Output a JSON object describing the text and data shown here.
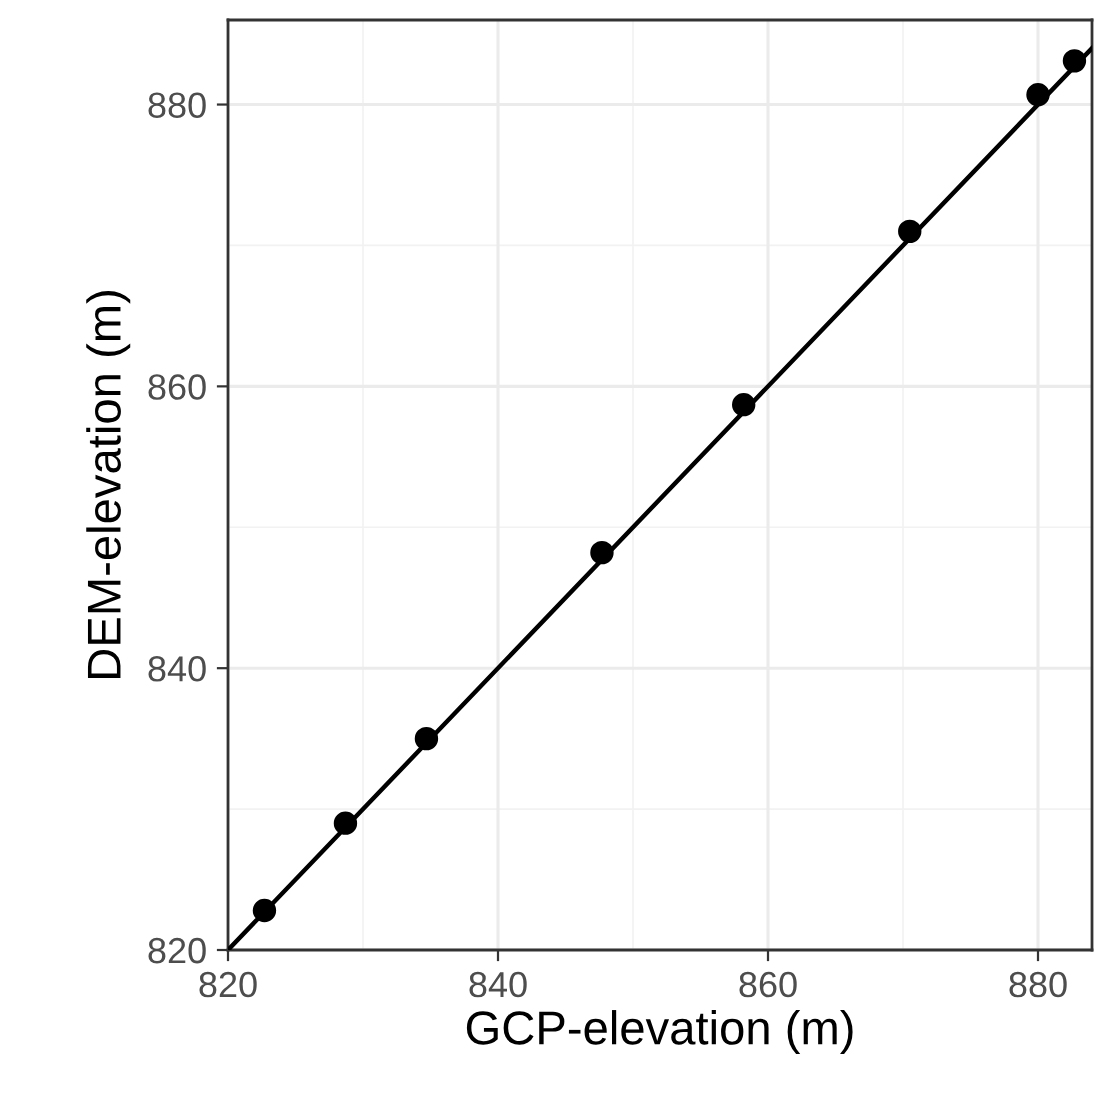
{
  "chart_data": {
    "type": "scatter",
    "xlabel": "GCP-elevation (m)",
    "ylabel": "DEM-elevation (m)",
    "xlim": [
      820,
      884
    ],
    "ylim": [
      820,
      886
    ],
    "xticks": [
      820,
      840,
      860,
      880
    ],
    "yticks": [
      820,
      840,
      860,
      880
    ],
    "grid": true,
    "series": [
      {
        "marker": "circle",
        "color": "#000000",
        "x": [
          822.7,
          828.7,
          834.7,
          847.7,
          858.2,
          870.5,
          880.0,
          882.7
        ],
        "values": [
          822.8,
          829.0,
          835.0,
          848.2,
          858.7,
          871.0,
          880.7,
          883.1
        ]
      },
      {
        "type": "line",
        "marker": "none",
        "color": "#000000",
        "line_style": "solid",
        "x": [
          820,
          884
        ],
        "values": [
          820,
          884
        ]
      }
    ]
  }
}
